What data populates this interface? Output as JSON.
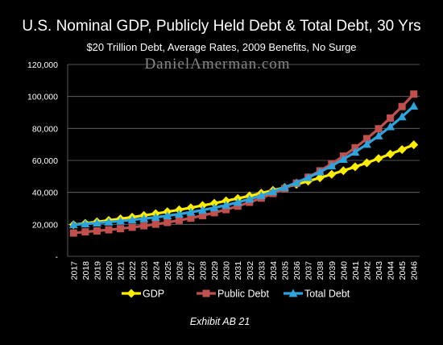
{
  "chart_data": {
    "type": "line",
    "title": "U.S. Nominal GDP, Publicly Held Debt & Total Debt, 30 Yrs",
    "subtitle": "$20 Trillion Debt, Average Rates, 2009 Benefits, No Surge",
    "watermark": "DanielAmerman.com",
    "footnote": "Exhibit AB 21",
    "x": [
      "2017",
      "2018",
      "2019",
      "2020",
      "2021",
      "2022",
      "2023",
      "2024",
      "2025",
      "2026",
      "2027",
      "2028",
      "2029",
      "2030",
      "2031",
      "2032",
      "2033",
      "2034",
      "2035",
      "2036",
      "2037",
      "2038",
      "2039",
      "2040",
      "2041",
      "2042",
      "2043",
      "2044",
      "2045",
      "2046"
    ],
    "ylim": [
      0,
      120000
    ],
    "yticks": [
      "-",
      "20,000",
      "40,000",
      "60,000",
      "80,000",
      "100,000",
      "120,000"
    ],
    "ytick_values": [
      0,
      20000,
      40000,
      60000,
      80000,
      100000,
      120000
    ],
    "grid": true,
    "legend_position": "bottom",
    "series": [
      {
        "name": "GDP",
        "color": "#ffee00",
        "marker": "diamond",
        "values": [
          19800,
          20700,
          21600,
          22500,
          23500,
          24500,
          25600,
          26700,
          27900,
          29100,
          30400,
          31800,
          33200,
          34700,
          36200,
          37800,
          39500,
          41300,
          43100,
          45000,
          47000,
          49100,
          51300,
          53600,
          56000,
          58500,
          61200,
          64000,
          66800,
          69800
        ]
      },
      {
        "name": "Public Debt",
        "color": "#c0504d",
        "marker": "square",
        "values": [
          14600,
          15300,
          15900,
          16600,
          17300,
          18200,
          19100,
          20100,
          21200,
          22500,
          23900,
          25500,
          27300,
          29200,
          31400,
          33800,
          36400,
          39300,
          42400,
          45800,
          49500,
          53500,
          57900,
          62700,
          67900,
          73600,
          79800,
          86500,
          93700,
          101500
        ]
      },
      {
        "name": "Total Debt",
        "color": "#2ea3dc",
        "marker": "triangle",
        "values": [
          19800,
          20300,
          20900,
          21500,
          22100,
          22800,
          23600,
          24400,
          25400,
          26400,
          27600,
          28900,
          30400,
          32000,
          33800,
          35800,
          38000,
          40500,
          43200,
          46100,
          49300,
          52800,
          56600,
          60700,
          65200,
          70100,
          75400,
          81100,
          87300,
          94000
        ]
      }
    ]
  }
}
